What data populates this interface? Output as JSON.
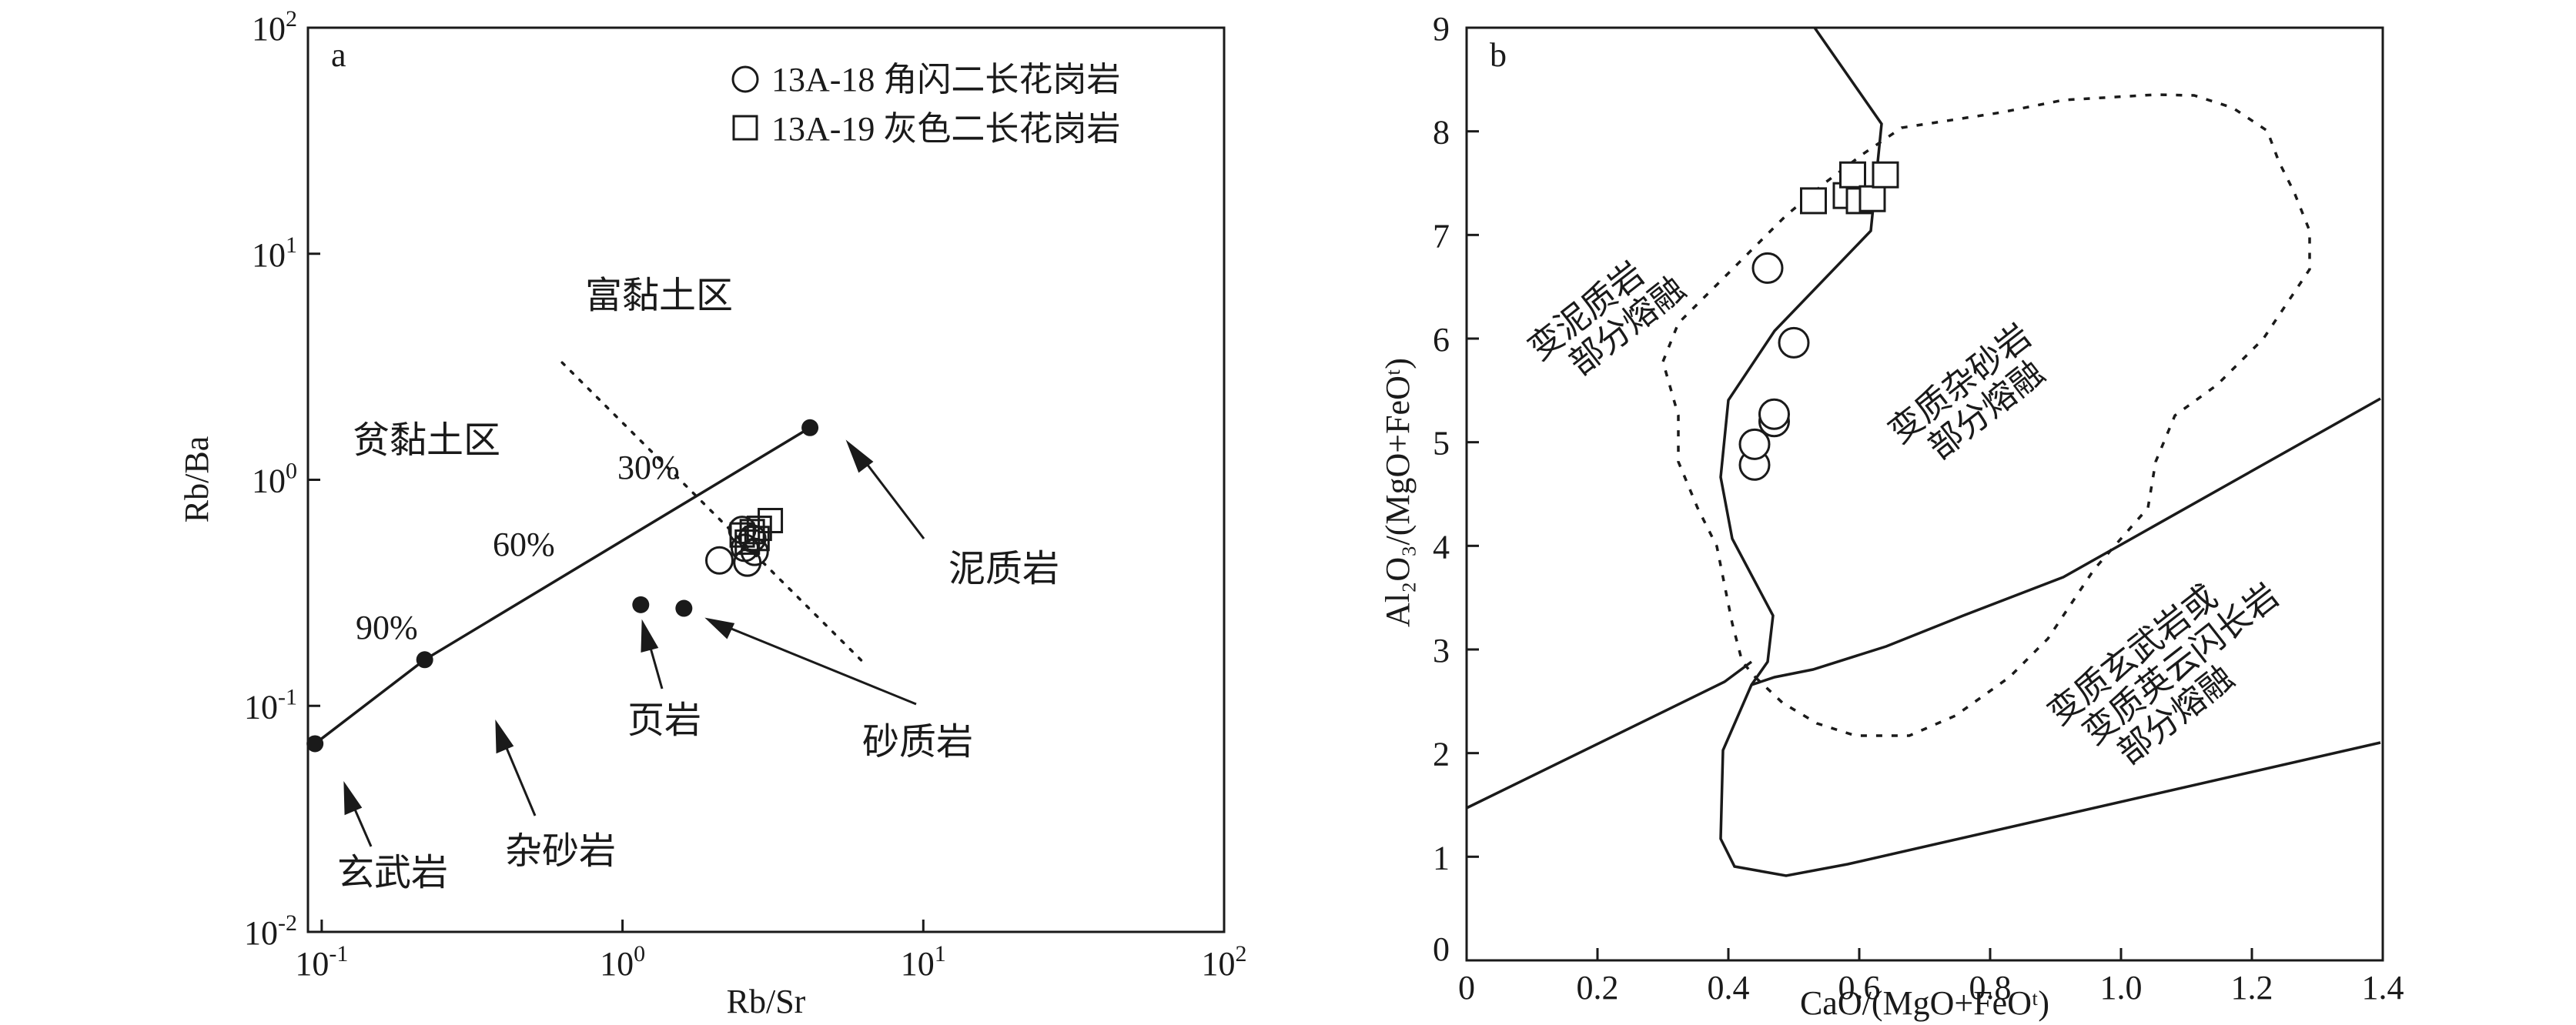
{
  "chart_data": [
    {
      "panel_label": "a",
      "type": "scatter",
      "xlabel": "Rb/Sr",
      "ylabel": "Rb/Ba",
      "xscale": "log",
      "yscale": "log",
      "xlim": [
        0.09,
        100
      ],
      "ylim": [
        0.01,
        100
      ],
      "x_ticks": [
        "10^-1",
        "10^0",
        "10^1",
        "10^2"
      ],
      "y_ticks": [
        "10^-2",
        "10^-1",
        "10^0",
        "10^1",
        "10^2"
      ],
      "legend_position": "top-right",
      "series": [
        {
          "name": "13A-18 角闪二长花岗岩",
          "marker": "open-circle",
          "points": [
            [
              2.1,
              0.44
            ],
            [
              2.5,
              0.6
            ],
            [
              2.55,
              0.5
            ],
            [
              2.6,
              0.43
            ],
            [
              2.7,
              0.55
            ],
            [
              2.75,
              0.48
            ]
          ]
        },
        {
          "name": "13A-19 灰色二长花岗岩",
          "marker": "open-square",
          "points": [
            [
              2.5,
              0.57
            ],
            [
              2.6,
              0.53
            ],
            [
              2.7,
              0.59
            ],
            [
              2.8,
              0.55
            ],
            [
              2.85,
              0.61
            ],
            [
              3.1,
              0.66
            ]
          ]
        },
        {
          "name": "",
          "marker": "filled-dot",
          "points": [
            [
              0.095,
              0.068
            ],
            [
              0.22,
              0.16
            ],
            [
              4.2,
              1.7
            ],
            [
              1.15,
              0.28
            ],
            [
              1.6,
              0.27
            ]
          ]
        }
      ],
      "mixing_line": [
        [
          0.095,
          0.068
        ],
        [
          0.22,
          0.16
        ],
        [
          4.2,
          1.7
        ]
      ],
      "dotted_divider": [
        [
          0.63,
          3.3
        ],
        [
          6.5,
          0.15
        ]
      ],
      "line_labels": [
        "90%",
        "60%",
        "30%"
      ],
      "field_labels": [
        "富黏土区",
        "贫黏土区"
      ],
      "annotations": [
        "泥质岩",
        "页岩",
        "砂质岩",
        "杂砂岩",
        "玄武岩"
      ]
    },
    {
      "panel_label": "b",
      "type": "scatter",
      "xlabel": "CaO/(MgO+FeOᵗ)",
      "ylabel": "Al₂O₃/(MgO+FeOᵗ)",
      "xlim": [
        0,
        1.4
      ],
      "ylim": [
        0,
        9
      ],
      "x_ticks": [
        "0",
        "0.2",
        "0.4",
        "0.6",
        "0.8",
        "1.0",
        "1.2",
        "1.4"
      ],
      "y_ticks": [
        "0",
        "1",
        "2",
        "3",
        "4",
        "5",
        "6",
        "7",
        "8",
        "9"
      ],
      "series": [
        {
          "name": "13A-18 角闪二长花岗岩",
          "marker": "open-circle",
          "points": [
            [
              0.44,
              4.78
            ],
            [
              0.44,
              4.98
            ],
            [
              0.47,
              5.2
            ],
            [
              0.47,
              5.27
            ],
            [
              0.5,
              5.96
            ],
            [
              0.46,
              6.68
            ]
          ]
        },
        {
          "name": "13A-19 灰色二长花岗岩",
          "marker": "open-square",
          "points": [
            [
              0.53,
              7.33
            ],
            [
              0.58,
              7.38
            ],
            [
              0.59,
              7.58
            ],
            [
              0.6,
              7.33
            ],
            [
              0.62,
              7.35
            ],
            [
              0.64,
              7.58
            ]
          ]
        }
      ],
      "field_labels": [
        [
          "变泥质岩",
          "部分熔融"
        ],
        [
          "变质杂砂岩",
          "部分熔融"
        ],
        [
          "变质玄武岩或",
          "变质英云闪长岩",
          "部分熔融"
        ]
      ]
    }
  ]
}
